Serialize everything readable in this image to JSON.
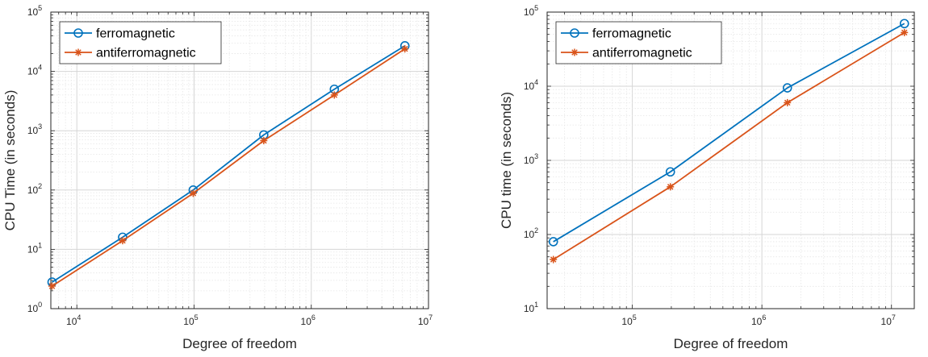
{
  "colors": {
    "ferromagnetic": "#0072BD",
    "antiferromagnetic": "#D95319",
    "grid": "#dcdcdc",
    "axis": "#262626"
  },
  "chart_data": [
    {
      "type": "line",
      "xscale": "log",
      "yscale": "log",
      "xlabel": "Degree of freedom",
      "ylabel": "CPU Time (in seconds)",
      "xlim": [
        6000,
        10000000
      ],
      "ylim": [
        1,
        100000
      ],
      "xticks": [
        10000,
        100000,
        1000000,
        10000000
      ],
      "xtick_labels": [
        {
          "base": "10",
          "exp": "4"
        },
        {
          "base": "10",
          "exp": "5"
        },
        {
          "base": "10",
          "exp": "6"
        },
        {
          "base": "10",
          "exp": "7"
        }
      ],
      "yticks": [
        1,
        10,
        100,
        1000,
        10000,
        100000
      ],
      "ytick_labels": [
        {
          "base": "10",
          "exp": "0"
        },
        {
          "base": "10",
          "exp": "1"
        },
        {
          "base": "10",
          "exp": "2"
        },
        {
          "base": "10",
          "exp": "3"
        },
        {
          "base": "10",
          "exp": "4"
        },
        {
          "base": "10",
          "exp": "5"
        }
      ],
      "grid": true,
      "legend_position": "top-left",
      "series": [
        {
          "name": "ferromagnetic",
          "marker": "circle",
          "x": [
            6144,
            24576,
            98304,
            393216,
            1572864,
            6291456
          ],
          "y": [
            2.8,
            16,
            100,
            850,
            5000,
            27000
          ]
        },
        {
          "name": "antiferromagnetic",
          "marker": "asterisk",
          "x": [
            6144,
            24576,
            98304,
            393216,
            1572864,
            6291456
          ],
          "y": [
            2.4,
            14,
            88,
            680,
            4000,
            24000
          ]
        }
      ]
    },
    {
      "type": "line",
      "xscale": "log",
      "yscale": "log",
      "xlabel": "Degree of freedom",
      "ylabel": "CPU time (in seconds)",
      "xlim": [
        22000,
        15000000
      ],
      "ylim": [
        10,
        100000
      ],
      "xticks": [
        100000,
        1000000,
        10000000
      ],
      "xtick_labels": [
        {
          "base": "10",
          "exp": "5"
        },
        {
          "base": "10",
          "exp": "6"
        },
        {
          "base": "10",
          "exp": "7"
        }
      ],
      "yticks": [
        10,
        100,
        1000,
        10000,
        100000
      ],
      "ytick_labels": [
        {
          "base": "10",
          "exp": "1"
        },
        {
          "base": "10",
          "exp": "2"
        },
        {
          "base": "10",
          "exp": "3"
        },
        {
          "base": "10",
          "exp": "4"
        },
        {
          "base": "10",
          "exp": "5"
        }
      ],
      "grid": true,
      "legend_position": "top-left",
      "series": [
        {
          "name": "ferromagnetic",
          "marker": "circle",
          "x": [
            24576,
            196608,
            1572864,
            12582912
          ],
          "y": [
            80,
            700,
            9500,
            70000
          ]
        },
        {
          "name": "antiferromagnetic",
          "marker": "asterisk",
          "x": [
            24576,
            196608,
            1572864,
            12582912
          ],
          "y": [
            46,
            440,
            6000,
            53000
          ]
        }
      ]
    }
  ]
}
